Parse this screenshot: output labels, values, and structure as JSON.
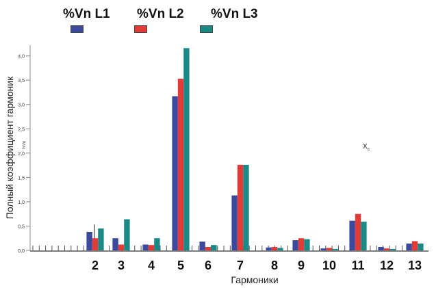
{
  "chart_data": {
    "type": "bar",
    "categories": [
      "2",
      "3",
      "4",
      "5",
      "6",
      "7",
      "8",
      "9",
      "10",
      "11",
      "12",
      "13"
    ],
    "series": [
      {
        "name": "%Vn L1",
        "color": "#3b4a9c",
        "values": [
          0.38,
          0.25,
          0.12,
          3.17,
          0.18,
          1.13,
          0.06,
          0.21,
          0.04,
          0.61,
          0.07,
          0.14
        ]
      },
      {
        "name": "%Vn L2",
        "color": "#e23a36",
        "values": [
          0.25,
          0.12,
          0.11,
          3.53,
          0.07,
          1.76,
          0.07,
          0.25,
          0.05,
          0.75,
          0.04,
          0.19
        ]
      },
      {
        "name": "%Vn L3",
        "color": "#1b8a86",
        "values": [
          0.45,
          0.64,
          0.25,
          4.16,
          0.11,
          1.76,
          0.05,
          0.23,
          0.03,
          0.59,
          0.03,
          0.14
        ]
      }
    ],
    "yticks": [
      "0,0",
      "0,5",
      "1,0",
      "1,5",
      "2,0",
      "2,5",
      "3,0",
      "3,5",
      "4,0"
    ],
    "ylim": [
      0,
      4.3
    ],
    "xlabel": "Гармоники",
    "ylabel": "Полный коэффициент гармоник",
    "ylabel_small": "%Vn",
    "annotation": "X",
    "annotation_sub": "c",
    "legend_position": "top-left",
    "grid": false
  }
}
